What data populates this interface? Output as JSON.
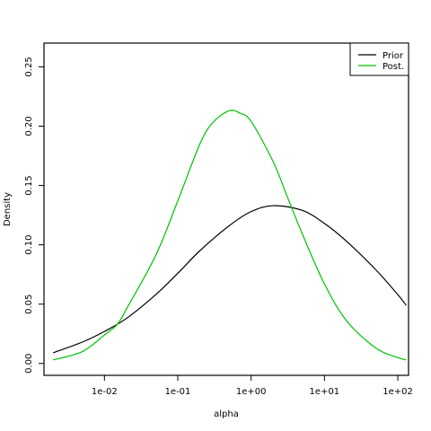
{
  "chart_data": {
    "type": "line",
    "title": "",
    "xlabel": "alpha",
    "ylabel": "Density",
    "x_scale": "log10",
    "xlim": [
      0.0015,
      140
    ],
    "ylim": [
      -0.01,
      0.27
    ],
    "x_ticks": [
      {
        "value": 0.01,
        "label": "1e-02"
      },
      {
        "value": 0.1,
        "label": "1e-01"
      },
      {
        "value": 1,
        "label": "1e+00"
      },
      {
        "value": 10,
        "label": "1e+01"
      },
      {
        "value": 100,
        "label": "1e+02"
      }
    ],
    "y_ticks": [
      {
        "value": 0.0,
        "label": "0.00"
      },
      {
        "value": 0.05,
        "label": "0.05"
      },
      {
        "value": 0.1,
        "label": "0.10"
      },
      {
        "value": 0.15,
        "label": "0.15"
      },
      {
        "value": 0.2,
        "label": "0.20"
      },
      {
        "value": 0.25,
        "label": "0.25"
      }
    ],
    "legend_position": "top-right",
    "grid": false,
    "series": [
      {
        "name": "Prior",
        "color": "#000000",
        "x": [
          0.002,
          0.005,
          0.01,
          0.02,
          0.05,
          0.1,
          0.2,
          0.5,
          1,
          2,
          5,
          10,
          20,
          50,
          100,
          130
        ],
        "y": [
          0.009,
          0.018,
          0.027,
          0.038,
          0.058,
          0.076,
          0.095,
          0.116,
          0.128,
          0.133,
          0.129,
          0.118,
          0.103,
          0.079,
          0.058,
          0.049
        ]
      },
      {
        "name": "Post.",
        "color": "#00c000",
        "x": [
          0.002,
          0.005,
          0.01,
          0.015,
          0.02,
          0.05,
          0.1,
          0.2,
          0.3,
          0.5,
          0.7,
          1,
          2,
          3,
          5,
          10,
          20,
          50,
          100,
          130
        ],
        "y": [
          0.003,
          0.01,
          0.024,
          0.033,
          0.046,
          0.091,
          0.137,
          0.185,
          0.203,
          0.213,
          0.211,
          0.204,
          0.17,
          0.143,
          0.109,
          0.067,
          0.036,
          0.013,
          0.005,
          0.003
        ]
      }
    ]
  }
}
